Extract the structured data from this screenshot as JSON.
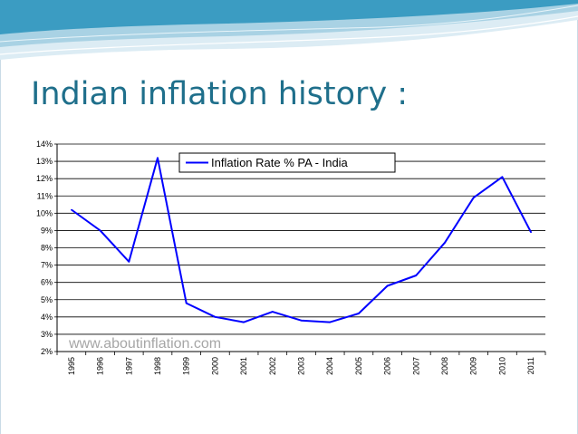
{
  "slide": {
    "title": "Indian inflation history :"
  },
  "colors": {
    "title": "#1f6f8b",
    "line": "#0000ff",
    "wave_dark": "#2a8fb5",
    "wave_light": "#bcdcea"
  },
  "watermark": "www.aboutinflation.com",
  "chart_data": {
    "type": "line",
    "title": "",
    "xlabel": "",
    "ylabel": "",
    "categories": [
      "1995",
      "1996",
      "1997",
      "1998",
      "1999",
      "2000",
      "2001",
      "2002",
      "2003",
      "2004",
      "2005",
      "2006",
      "2007",
      "2008",
      "2009",
      "2010",
      "2011"
    ],
    "series": [
      {
        "name": "Inflation Rate % PA - India",
        "values": [
          10.2,
          9.0,
          7.2,
          13.2,
          4.8,
          4.0,
          3.7,
          4.3,
          3.8,
          3.7,
          4.2,
          5.8,
          6.4,
          8.3,
          10.9,
          12.1,
          8.9
        ]
      }
    ],
    "ylim": [
      2,
      14
    ],
    "yticks": [
      2,
      3,
      4,
      5,
      6,
      7,
      8,
      9,
      10,
      11,
      12,
      13,
      14
    ],
    "ytick_labels": [
      "2%",
      "3%",
      "4%",
      "5%",
      "6%",
      "7%",
      "8%",
      "9%",
      "10%",
      "11%",
      "12%",
      "13%",
      "14%"
    ],
    "grid": true,
    "legend_position": "top-center"
  }
}
